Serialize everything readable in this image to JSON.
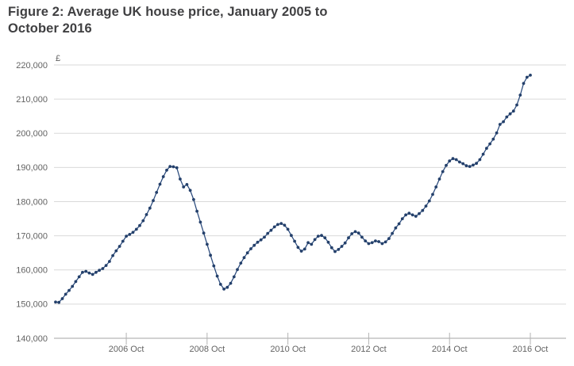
{
  "figure": {
    "title": "Figure 2: Average UK house price, January 2005 to October 2016"
  },
  "chart_data": {
    "type": "line",
    "title": "Figure 2: Average UK house price, January 2005 to October 2016",
    "series_name": "Average UK house price",
    "unit_label": "£",
    "frequency": "monthly",
    "x_start": "2005 Jan",
    "x_end": "2016 Oct",
    "ylim": [
      140000,
      220000
    ],
    "y_tick_step": 10000,
    "grid": true,
    "legend": "none",
    "line_color": "#2a4a7c",
    "marker_color": "#24406b",
    "grid_color": "#d9d9d9",
    "axis_color": "#a6a6a6",
    "tick_color": "#b3b3b3",
    "label_color": "#636363",
    "y_ticks": [
      {
        "value": 140000,
        "label": "140,000"
      },
      {
        "value": 150000,
        "label": "150,000"
      },
      {
        "value": 160000,
        "label": "160,000"
      },
      {
        "value": 170000,
        "label": "170,000"
      },
      {
        "value": 180000,
        "label": "180,000"
      },
      {
        "value": 190000,
        "label": "190,000"
      },
      {
        "value": 200000,
        "label": "200,000"
      },
      {
        "value": 210000,
        "label": "210,000"
      },
      {
        "value": 220000,
        "label": "220,000"
      }
    ],
    "x_ticks": [
      {
        "month_index": 21,
        "label": "2006 Oct"
      },
      {
        "month_index": 45,
        "label": "2008 Oct"
      },
      {
        "month_index": 69,
        "label": "2010 Oct"
      },
      {
        "month_index": 93,
        "label": "2012 Oct"
      },
      {
        "month_index": 117,
        "label": "2014 Oct"
      },
      {
        "month_index": 141,
        "label": "2016 Oct"
      }
    ],
    "values": [
      150600,
      150500,
      151600,
      152900,
      154000,
      155200,
      156600,
      158000,
      159300,
      159600,
      159100,
      158700,
      159300,
      159900,
      160400,
      161300,
      162500,
      164200,
      165600,
      166900,
      168400,
      169900,
      170400,
      171000,
      171900,
      173000,
      174400,
      176200,
      178100,
      180300,
      182700,
      185100,
      187300,
      189200,
      190300,
      190200,
      189900,
      186600,
      184300,
      185000,
      183300,
      180600,
      177200,
      174000,
      170800,
      167500,
      164300,
      161200,
      158200,
      155800,
      154400,
      154900,
      156100,
      158000,
      160100,
      162000,
      163600,
      165000,
      166200,
      167200,
      168100,
      168800,
      169600,
      170700,
      171600,
      172600,
      173300,
      173600,
      173100,
      171900,
      170100,
      168400,
      166600,
      165500,
      166100,
      168000,
      167500,
      168900,
      169900,
      170100,
      169400,
      168100,
      166500,
      165400,
      166000,
      166900,
      167900,
      169400,
      170600,
      171200,
      170800,
      169600,
      168500,
      167700,
      168000,
      168500,
      168300,
      167700,
      168200,
      169200,
      170700,
      172300,
      173500,
      175000,
      176100,
      176600,
      176100,
      175700,
      176500,
      177400,
      178700,
      180200,
      182100,
      184300,
      186600,
      188800,
      190600,
      191900,
      192600,
      192300,
      191600,
      191100,
      190500,
      190300,
      190700,
      191200,
      192300,
      193900,
      195600,
      196900,
      198300,
      200100,
      202600,
      203400,
      204800,
      205700,
      206500,
      208300,
      211200,
      214600,
      216400,
      217000
    ]
  }
}
